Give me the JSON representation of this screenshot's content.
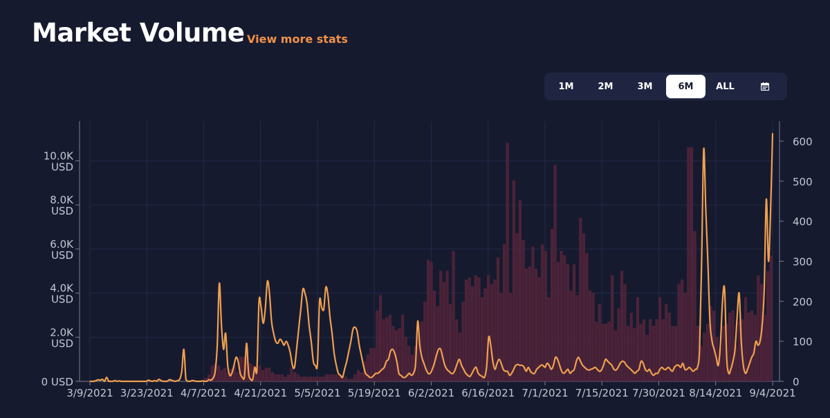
{
  "header": {
    "title": "Market Volume",
    "more_link": "View more stats"
  },
  "range_selector": {
    "options": [
      "1M",
      "2M",
      "3M",
      "6M",
      "ALL"
    ],
    "active": "6M",
    "calendar_icon": "calendar-icon"
  },
  "colors": {
    "background": "#161a2e",
    "bar": "#4a2236",
    "line": "#f0a050",
    "accent": "#f0914a"
  },
  "chart_data": {
    "type": "bar+line",
    "x_ticks": [
      "3/9/2021",
      "3/23/2021",
      "4/7/2021",
      "4/21/2021",
      "5/5/2021",
      "5/19/2021",
      "6/2/2021",
      "6/16/2021",
      "7/1/2021",
      "7/15/2021",
      "7/30/2021",
      "8/14/2021",
      "9/4/2021"
    ],
    "y_left": {
      "ticks": [
        "0 USD",
        "2.0K USD",
        "4.0K USD",
        "6.0K USD",
        "8.0K USD",
        "10.0K USD"
      ],
      "range": [
        0,
        11800
      ]
    },
    "y_right": {
      "ticks": [
        "0",
        "100",
        "200",
        "300",
        "400",
        "500",
        "600"
      ],
      "range": [
        0,
        650
      ]
    },
    "grid": true,
    "series": [
      {
        "kind": "bar",
        "axis": "left",
        "values": [
          0,
          0,
          0,
          0,
          0,
          0,
          0,
          0,
          0,
          0,
          0,
          0,
          0,
          0,
          0,
          0,
          0,
          0,
          0,
          0,
          0,
          0,
          0,
          0,
          0,
          0,
          0,
          0,
          0,
          0,
          0,
          0,
          0,
          0,
          0,
          0,
          150,
          300,
          700,
          800,
          700,
          500,
          600,
          400,
          550,
          700,
          400,
          1100,
          1100,
          1500,
          800,
          700,
          600,
          700,
          500,
          600,
          600,
          400,
          300,
          300,
          300,
          200,
          300,
          600,
          400,
          300,
          200,
          200,
          200,
          200,
          200,
          200,
          200,
          200,
          300,
          300,
          300,
          300,
          300,
          200,
          200,
          100,
          100,
          300,
          500,
          400,
          900,
          1200,
          1500,
          1500,
          3200,
          3900,
          2800,
          2900,
          3000,
          2500,
          2300,
          2400,
          3000,
          2000,
          1600,
          1200,
          1600,
          2200,
          2700,
          3600,
          5500,
          5400,
          4100,
          3400,
          5000,
          4500,
          5000,
          3500,
          5900,
          2800,
          2200,
          3600,
          4600,
          4700,
          4300,
          4800,
          4700,
          3800,
          4200,
          4800,
          4400,
          4600,
          5600,
          4000,
          6200,
          10800,
          4000,
          9100,
          6700,
          8200,
          6400,
          5100,
          5200,
          6100,
          5100,
          4700,
          6200,
          5900,
          3800,
          6900,
          9800,
          5400,
          5900,
          5700,
          5300,
          4100,
          5300,
          3900,
          7400,
          6700,
          5800,
          4100,
          4000,
          2700,
          3500,
          2600,
          2600,
          2700,
          4800,
          2300,
          3300,
          5000,
          4400,
          2500,
          3100,
          2400,
          3800,
          2600,
          2800,
          2100,
          2800,
          2500,
          2800,
          3800,
          2800,
          3500,
          3100,
          2500,
          2500,
          4400,
          4600,
          4000,
          10600,
          10600,
          6800,
          2500,
          1600,
          2200,
          2600,
          3400,
          3200,
          2000,
          1500,
          2500,
          2600,
          3100,
          3200,
          1600,
          2700,
          2800,
          3800,
          3100,
          3200,
          3000,
          4800,
          4400,
          3000,
          5000,
          5700
        ]
      },
      {
        "kind": "line",
        "axis": "right",
        "values": [
          0,
          0,
          0,
          2,
          4,
          3,
          5,
          0,
          10,
          0,
          0,
          0,
          2,
          0,
          1,
          0,
          0,
          0,
          0,
          0,
          0,
          0,
          0,
          0,
          0,
          0,
          0,
          0,
          3,
          1,
          0,
          2,
          0,
          5,
          2,
          0,
          0,
          0,
          4,
          3,
          1,
          0,
          2,
          5,
          25,
          80,
          5,
          0,
          0,
          2,
          1,
          0,
          0,
          0,
          1,
          0,
          0,
          4,
          3,
          8,
          25,
          90,
          245,
          140,
          80,
          120,
          40,
          15,
          20,
          40,
          60,
          50,
          20,
          10,
          10,
          95,
          20,
          5,
          5,
          35,
          30,
          200,
          185,
          145,
          180,
          250,
          220,
          150,
          120,
          100,
          95,
          105,
          100,
          90,
          100,
          90,
          70,
          40,
          35,
          80,
          130,
          180,
          230,
          220,
          195,
          140,
          100,
          50,
          40,
          45,
          200,
          185,
          180,
          235,
          215,
          160,
          120,
          70,
          40,
          20,
          15,
          10,
          30,
          50,
          75,
          100,
          130,
          135,
          125,
          90,
          65,
          40,
          20,
          15,
          10,
          10,
          15,
          20,
          20,
          25,
          30,
          35,
          50,
          55,
          75,
          80,
          70,
          50,
          20,
          15,
          10,
          10,
          15,
          20,
          15,
          20,
          45,
          150,
          90,
          60,
          45,
          30,
          20,
          20,
          30,
          45,
          65,
          80,
          80,
          60,
          40,
          30,
          25,
          20,
          20,
          30,
          45,
          55,
          40,
          30,
          20,
          15,
          12,
          20,
          30,
          35,
          20,
          15,
          12,
          10,
          35,
          110,
          90,
          50,
          30,
          45,
          55,
          45,
          30,
          25,
          25,
          15,
          20,
          30,
          40,
          42,
          40,
          40,
          35,
          25,
          35,
          25,
          20,
          20,
          30,
          35,
          40,
          40,
          35,
          45,
          40,
          30,
          40,
          60,
          55,
          40,
          25,
          20,
          25,
          30,
          20,
          25,
          30,
          50,
          60,
          50,
          40,
          35,
          30,
          28,
          30,
          32,
          35,
          30,
          25,
          28,
          40,
          55,
          50,
          45,
          40,
          30,
          28,
          35,
          45,
          50,
          48,
          40,
          35,
          30,
          25,
          20,
          25,
          30,
          50,
          45,
          30,
          25,
          30,
          20,
          15,
          20,
          20,
          30,
          35,
          30,
          30,
          35,
          30,
          25,
          35,
          40,
          40,
          35,
          45,
          30,
          30,
          35,
          30,
          25,
          30,
          35,
          80,
          300,
          580,
          430,
          300,
          150,
          100,
          80,
          60,
          40,
          90,
          200,
          230,
          60,
          20,
          30,
          50,
          80,
          160,
          220,
          100,
          40,
          20,
          30,
          45,
          60,
          70,
          100,
          90,
          100,
          140,
          230,
          455,
          300,
          420,
          620
        ]
      }
    ]
  }
}
